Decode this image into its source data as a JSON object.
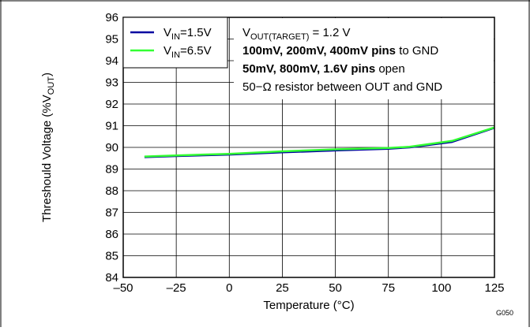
{
  "chart_data": {
    "type": "line",
    "xlabel": "Temperature (°C)",
    "ylabel_main": "Threshould Voltage (%V",
    "ylabel_sub": "OUT",
    "ylabel_tail": ")",
    "xlim": [
      -50,
      125
    ],
    "ylim": [
      84,
      96
    ],
    "x_ticks": [
      "–50",
      "–25",
      "0",
      "25",
      "50",
      "75",
      "100",
      "125"
    ],
    "y_ticks": [
      "84",
      "85",
      "86",
      "87",
      "88",
      "89",
      "90",
      "91",
      "92",
      "93",
      "94",
      "95",
      "96"
    ],
    "grid": true,
    "figure_id": "G050",
    "series": [
      {
        "name_main": "V",
        "name_sub": "IN",
        "name_tail": "=1.5V",
        "color": "#0000a0",
        "x": [
          -40,
          -25,
          0,
          25,
          50,
          75,
          85,
          105,
          125
        ],
        "y": [
          89.55,
          89.6,
          89.67,
          89.77,
          89.86,
          89.94,
          90.0,
          90.25,
          90.9
        ]
      },
      {
        "name_main": "V",
        "name_sub": "IN",
        "name_tail": "=6.5V",
        "color": "#33ff33",
        "x": [
          -40,
          -25,
          0,
          25,
          50,
          75,
          85,
          105,
          125
        ],
        "y": [
          89.58,
          89.63,
          89.7,
          89.82,
          89.91,
          89.97,
          90.03,
          90.3,
          90.92
        ]
      }
    ],
    "legend_position": "top-left",
    "annotation": {
      "line1_main": "V",
      "line1_sub": "OUT(TARGET)",
      "line1_tail": " = 1.2 V",
      "line2_bold": "100mV, 200mV, 400mV pins",
      "line2_tail": " to GND",
      "line3_bold": "50mV, 800mV, 1.6V pins",
      "line3_tail": " open",
      "line4": "50−Ω resistor between OUT and GND"
    }
  }
}
